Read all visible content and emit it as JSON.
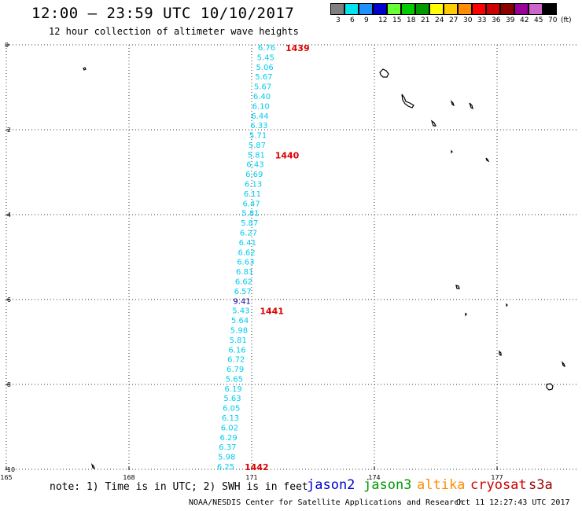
{
  "header": {
    "title": "12:00 — 23:59 UTC 10/10/2017",
    "subtitle": "12 hour collection of altimeter wave heights"
  },
  "legend": {
    "unit": "(ft)",
    "colors": [
      "#808080",
      "#00e5ee",
      "#1e90ff",
      "#0000cd",
      "#66ff33",
      "#00cc00",
      "#009900",
      "#ffff00",
      "#ffcc00",
      "#ff8c00",
      "#ff0000",
      "#cc0000",
      "#8b0000",
      "#990099",
      "#cc66cc",
      "#000000"
    ],
    "labels": [
      "3",
      "6",
      "9",
      "12",
      "15",
      "18",
      "21",
      "24",
      "27",
      "30",
      "33",
      "36",
      "39",
      "42",
      "45",
      "70"
    ]
  },
  "map": {
    "x_ticks": [
      "165",
      "168",
      "171",
      "174",
      "177"
    ],
    "y_ticks": [
      "0",
      "-2",
      "-4",
      "-6",
      "-8",
      "-10"
    ],
    "grid_style": "dotted",
    "land_color": "#000000",
    "track_color": "#00ccee",
    "track_highlight_color": "#000099",
    "track_labels": [
      "6.76",
      "5.45",
      "5.06",
      "5.67",
      "5.67",
      "6.40",
      "6.10",
      "6.44",
      "6.33",
      "5.71",
      "5.87",
      "5.81",
      "6.43",
      "6.69",
      "6.13",
      "6.11",
      "6.47",
      "5.81",
      "5.87",
      "6.27",
      "6.41",
      "6.62",
      "6.63",
      "6.81",
      "6.62",
      "6.57",
      "9.41",
      "5.43",
      "5.64",
      "5.98",
      "5.81",
      "6.16",
      "6.72",
      "6.79",
      "5.65",
      "6.19",
      "5.63",
      "6.05",
      "6.13",
      "6.02",
      "6.29",
      "6.37",
      "5.98",
      "6.25"
    ],
    "pass_labels": [
      "1439",
      "1440",
      "1441",
      "1442"
    ],
    "pass_color": "#dd0000"
  },
  "footer": {
    "note": "note: 1) Time is in UTC; 2) SWH is in feet",
    "satellites": [
      {
        "name": "jason2",
        "color": "#0000cc"
      },
      {
        "name": "jason3",
        "color": "#009900"
      },
      {
        "name": "altika",
        "color": "#ff8c00"
      },
      {
        "name": "cryosat",
        "color": "#cc0000"
      },
      {
        "name": "s3a",
        "color": "#990000"
      }
    ],
    "credit": "NOAA/NESDIS Center for Satellite Applications and Research",
    "timestamp": "Oct 11 12:27:43 UTC 2017"
  }
}
